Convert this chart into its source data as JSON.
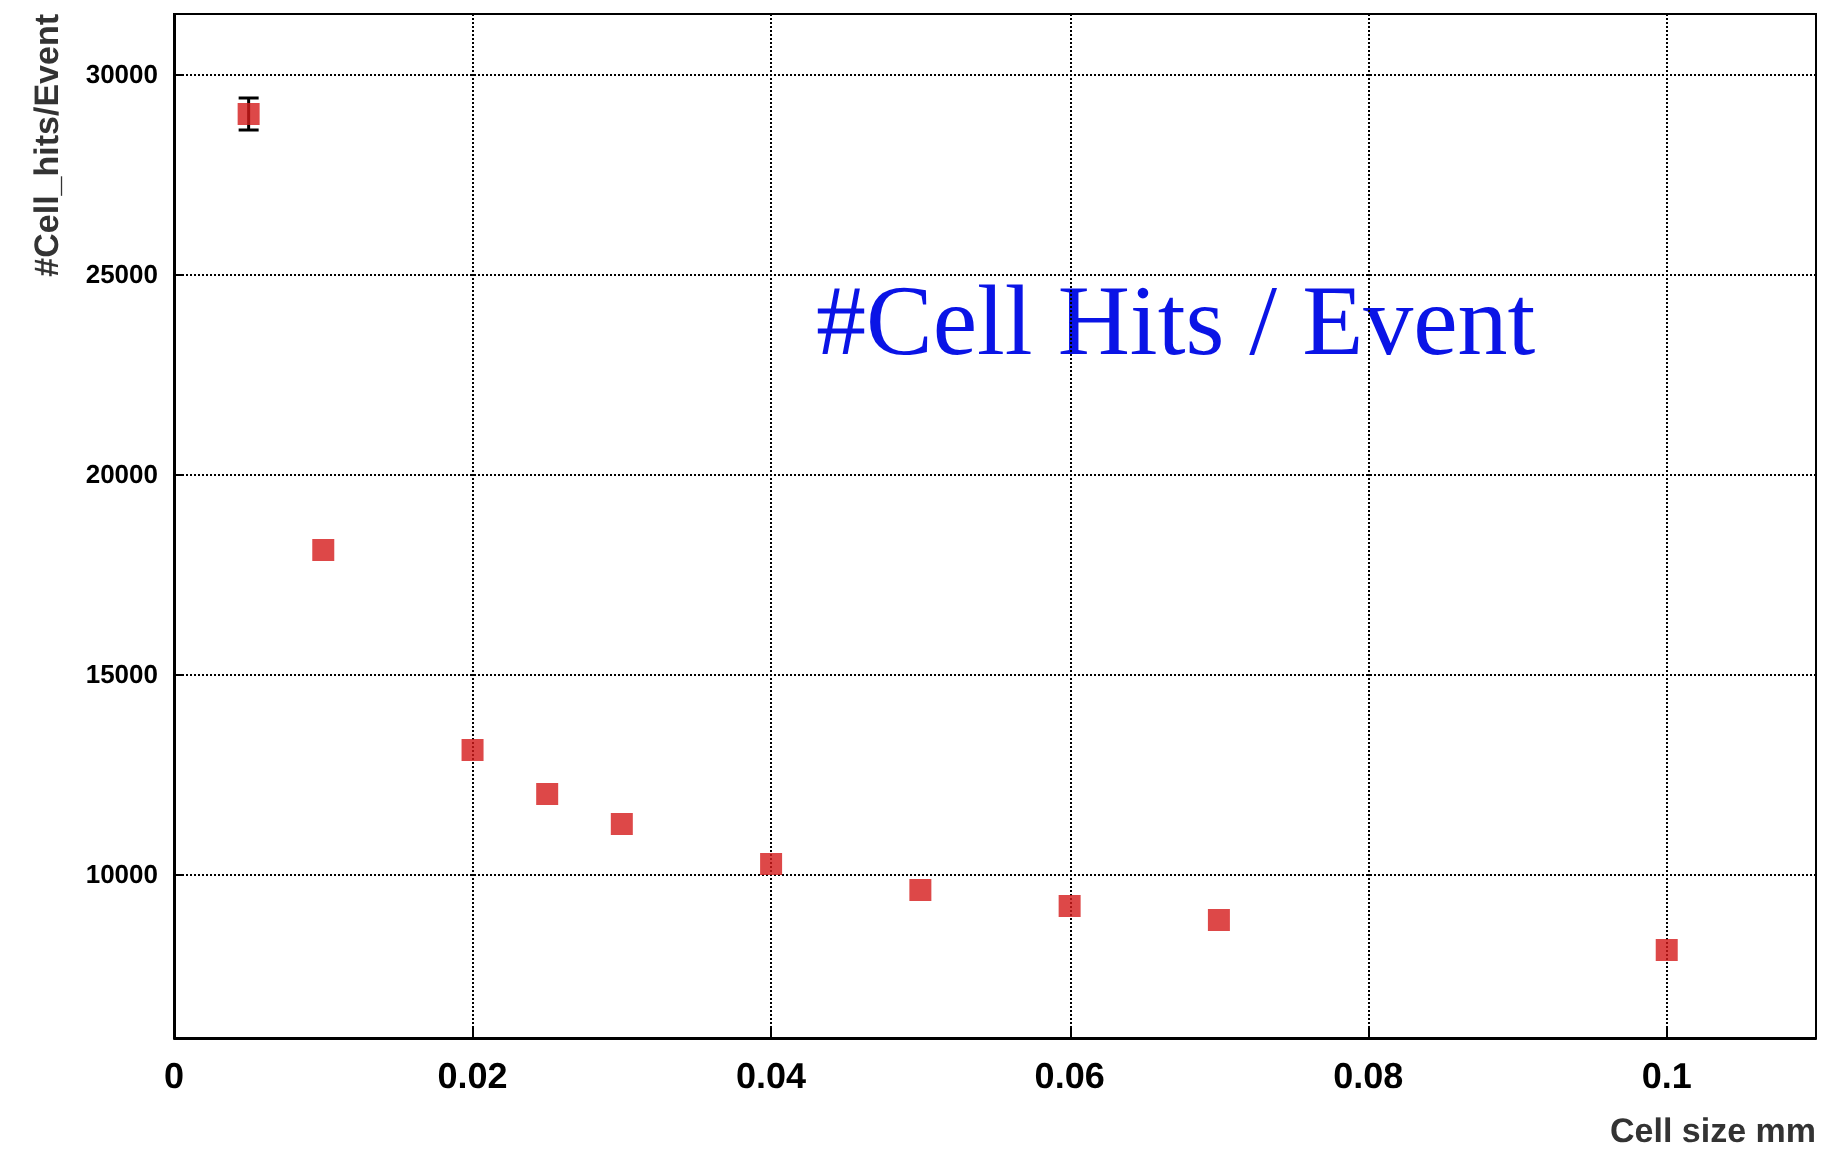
{
  "chart_data": {
    "type": "scatter",
    "xlabel": "Cell size mm",
    "ylabel": "#Cell_hits/Event",
    "annotations": [
      "#Cell Hits / Event"
    ],
    "x": [
      0.005,
      0.01,
      0.02,
      0.025,
      0.03,
      0.04,
      0.05,
      0.06,
      0.07,
      0.1
    ],
    "series": [
      {
        "color": "#d41a1a",
        "values": [
          29000,
          18100,
          13100,
          12000,
          11250,
          10250,
          9600,
          9200,
          8850,
          8100
        ],
        "errors": [
          400,
          null,
          null,
          null,
          null,
          null,
          null,
          null,
          null,
          null
        ]
      }
    ],
    "xlim": [
      0,
      0.11
    ],
    "xticks": [
      0,
      0.02,
      0.04,
      0.06,
      0.08,
      0.1
    ],
    "ylim": [
      5900,
      31500
    ],
    "yticks": [
      10000,
      15000,
      20000,
      25000,
      30000
    ],
    "grid": true,
    "marker": "square"
  }
}
